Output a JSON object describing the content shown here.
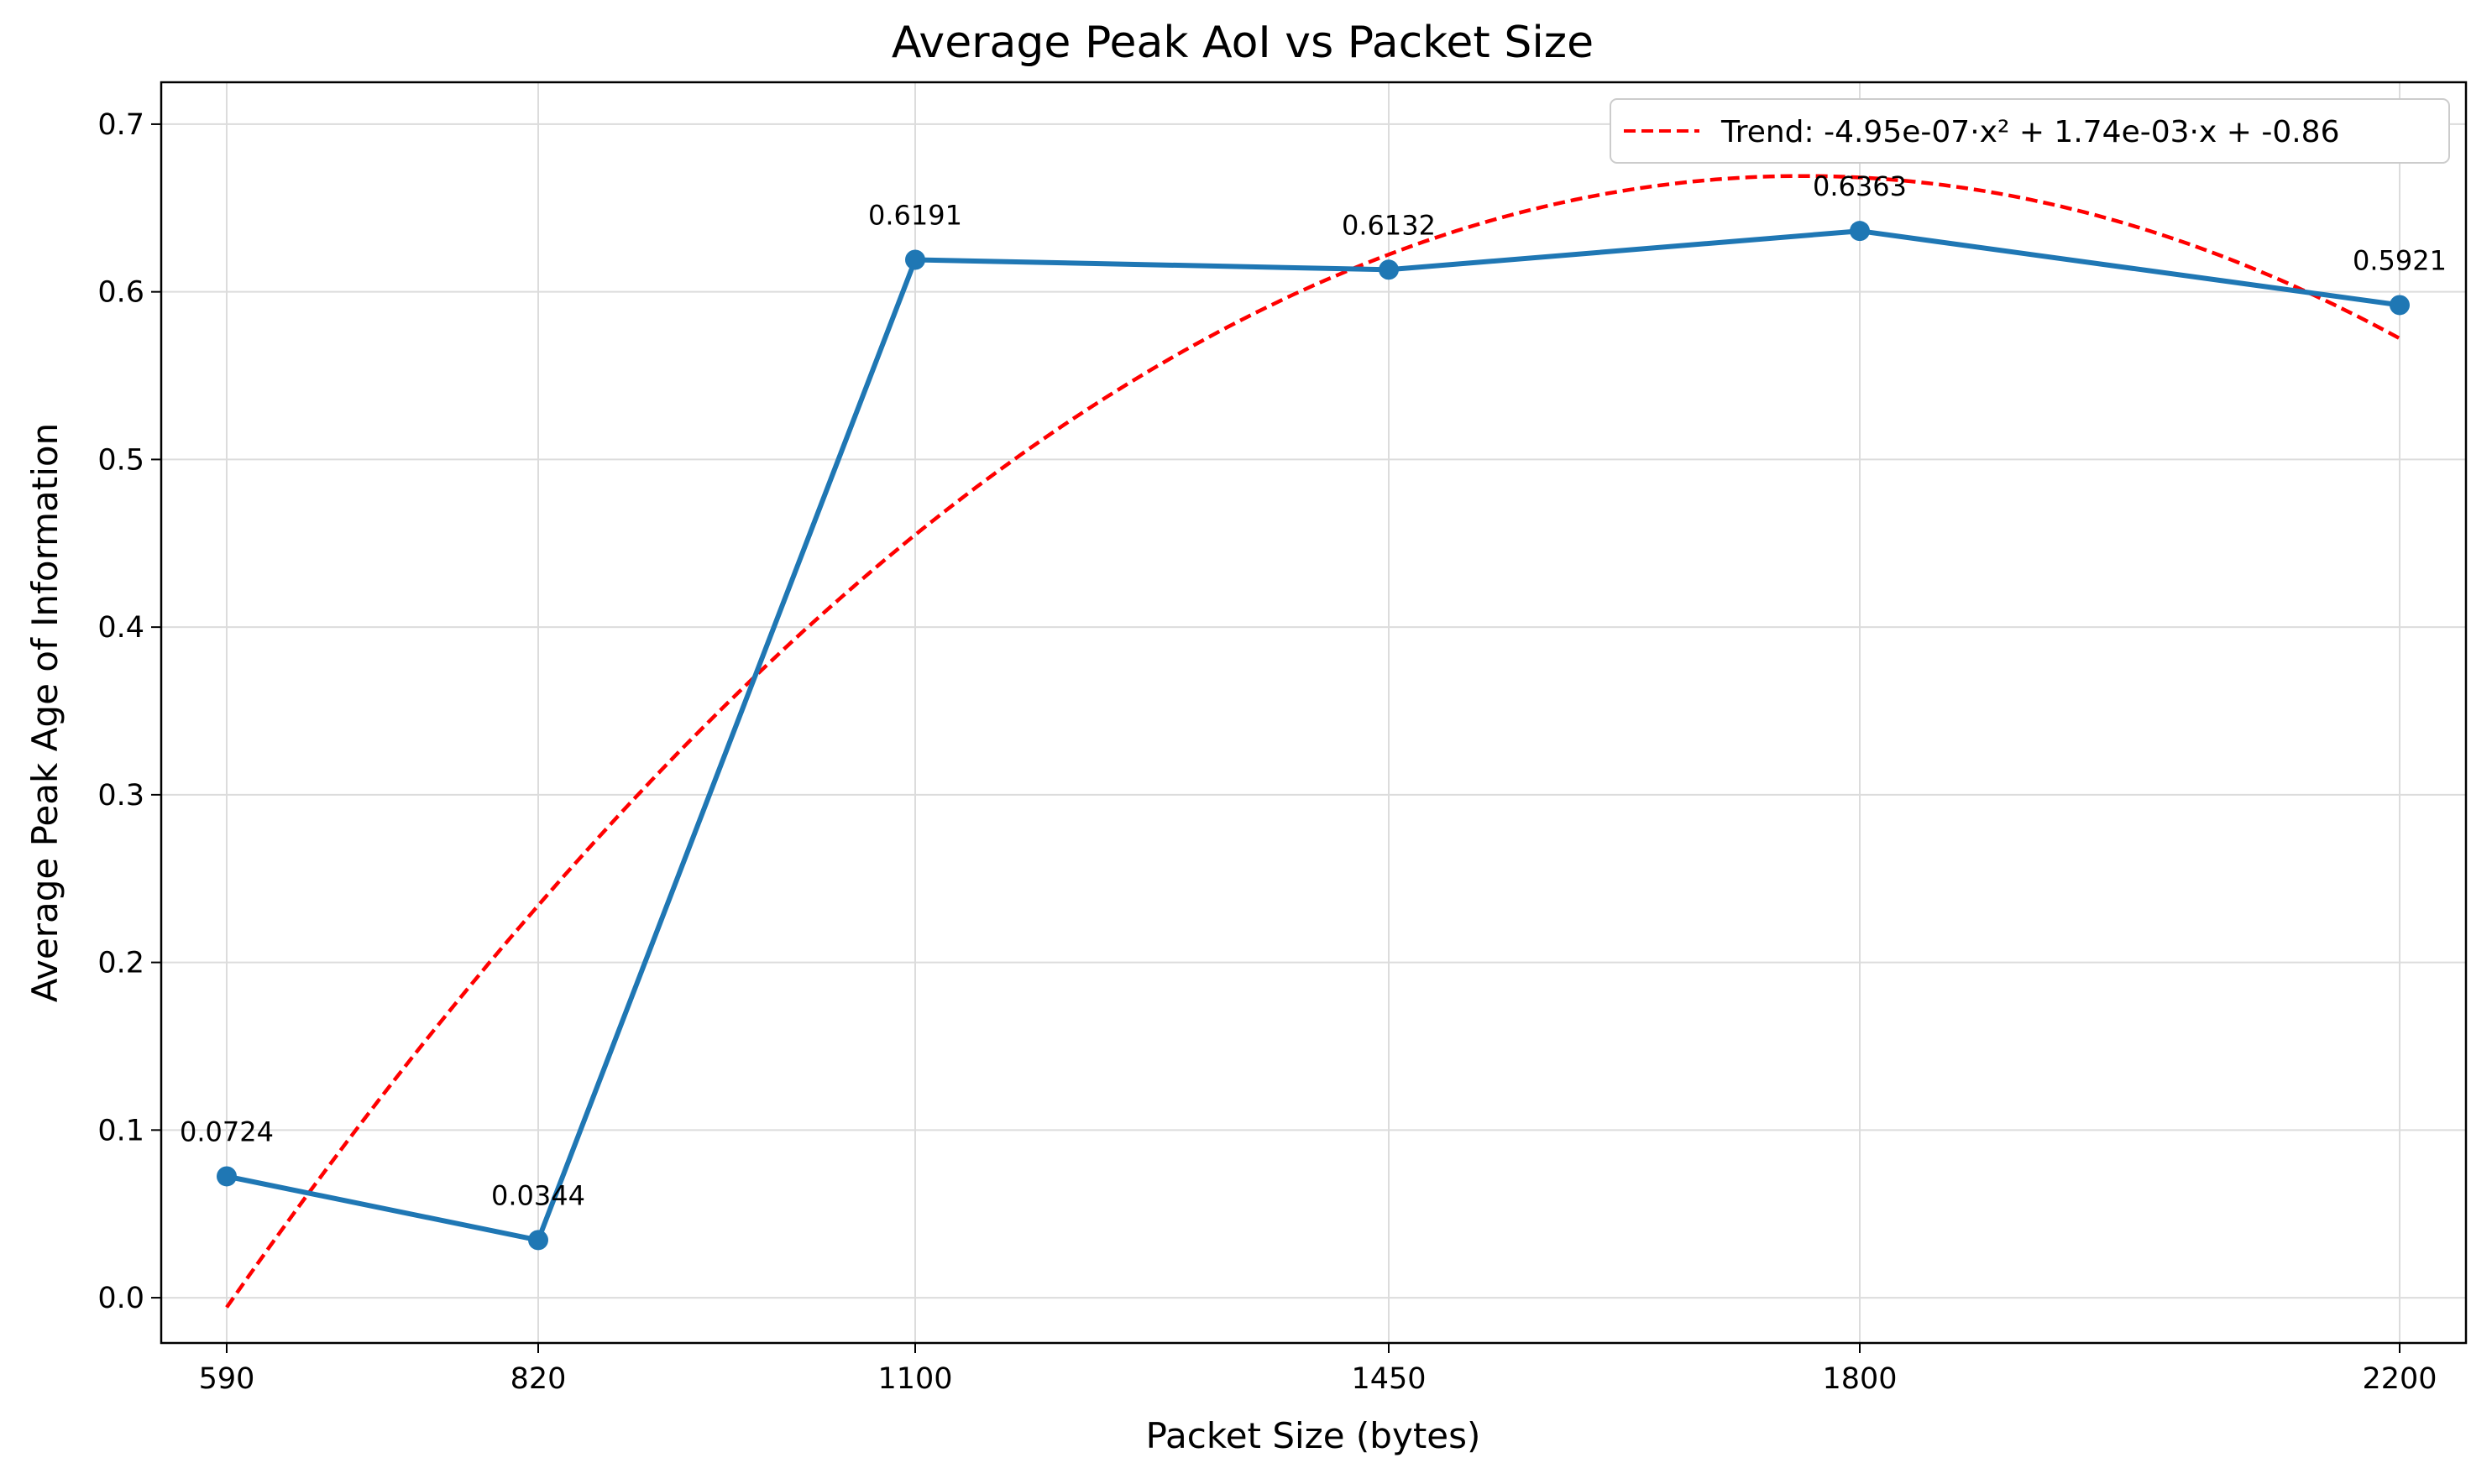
{
  "chart_data": {
    "type": "line",
    "title": "Average Peak AoI vs Packet Size",
    "xlabel": "Packet Size (bytes)",
    "ylabel": "Average Peak Age of Information",
    "x": [
      590,
      820,
      1100,
      1450,
      1800,
      2200
    ],
    "x_tick_labels": [
      "590",
      "820",
      "1100",
      "1450",
      "1800",
      "2200"
    ],
    "xlim": [
      540,
      2250
    ],
    "ylim": [
      -0.027,
      0.725
    ],
    "y_ticks": [
      0.0,
      0.1,
      0.2,
      0.3,
      0.4,
      0.5,
      0.6,
      0.7
    ],
    "y_tick_labels": [
      "0.0",
      "0.1",
      "0.2",
      "0.3",
      "0.4",
      "0.5",
      "0.6",
      "0.7"
    ],
    "grid": true,
    "legend_position": "top-right",
    "series": [
      {
        "values": [
          0.0724,
          0.0344,
          0.6191,
          0.6132,
          0.6363,
          0.5921
        ],
        "data_labels": [
          "0.0724",
          "0.0344",
          "0.6191",
          "0.6132",
          "0.6363",
          "0.5921"
        ],
        "color": "#1f77b4",
        "style": "solid",
        "marker": "circle"
      },
      {
        "name": "Trend: -4.95e-07·x² + 1.74e-03·x + -0.86",
        "type": "polynomial-fit",
        "coefficients": [
          -4.95e-07,
          0.00174,
          -0.86
        ],
        "domain": [
          590,
          2200
        ],
        "color": "#ff0000",
        "style": "dashed"
      }
    ]
  }
}
